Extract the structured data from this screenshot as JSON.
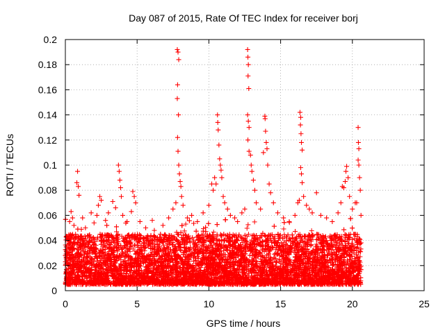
{
  "chart_data": {
    "type": "scatter",
    "title": "Day 087 of 2015, Rate Of TEC Index for receiver borj",
    "xlabel": "GPS time / hours",
    "ylabel": "ROTI / TECUs",
    "xlim": [
      0,
      25
    ],
    "ylim": [
      0,
      0.2
    ],
    "x_ticks": [
      0,
      5,
      10,
      15,
      20,
      25
    ],
    "y_ticks": [
      0,
      0.02,
      0.04,
      0.06,
      0.08,
      0.1,
      0.12,
      0.14,
      0.16,
      0.18,
      0.2
    ],
    "x_tick_labels": [
      "0",
      "5",
      "10",
      "15",
      "20",
      "25"
    ],
    "y_tick_labels": [
      "0",
      "0.02",
      "0.04",
      "0.06",
      "0.08",
      "0.1",
      "0.12",
      "0.14",
      "0.16",
      "0.18",
      "0.2"
    ],
    "grid": true,
    "grid_style": "dotted",
    "marker": "plus",
    "marker_color": "#ff0000",
    "x_data_range": [
      0,
      20.6
    ],
    "baseline_band": [
      0.005,
      0.045
    ],
    "series": [
      {
        "points": [
          [
            0.3,
            0.055
          ],
          [
            0.4,
            0.063
          ],
          [
            0.5,
            0.058
          ],
          [
            0.6,
            0.052
          ],
          [
            0.8,
            0.086
          ],
          [
            0.85,
            0.095
          ],
          [
            0.9,
            0.083
          ],
          [
            0.95,
            0.076
          ],
          [
            1.2,
            0.058
          ],
          [
            1.4,
            0.05
          ],
          [
            1.8,
            0.062
          ],
          [
            2.0,
            0.054
          ],
          [
            2.2,
            0.06
          ],
          [
            2.3,
            0.068
          ],
          [
            2.4,
            0.075
          ],
          [
            2.5,
            0.072
          ],
          [
            2.8,
            0.056
          ],
          [
            3.0,
            0.062
          ],
          [
            3.3,
            0.071
          ],
          [
            3.5,
            0.066
          ],
          [
            3.7,
            0.1
          ],
          [
            3.75,
            0.095
          ],
          [
            3.8,
            0.088
          ],
          [
            3.85,
            0.082
          ],
          [
            3.9,
            0.075
          ],
          [
            4.0,
            0.06
          ],
          [
            4.3,
            0.055
          ],
          [
            4.6,
            0.063
          ],
          [
            4.7,
            0.079
          ],
          [
            4.8,
            0.075
          ],
          [
            4.9,
            0.07
          ],
          [
            5.2,
            0.055
          ],
          [
            5.6,
            0.05
          ],
          [
            6.2,
            0.048
          ],
          [
            6.8,
            0.052
          ],
          [
            7.2,
            0.058
          ],
          [
            7.5,
            0.065
          ],
          [
            7.7,
            0.07
          ],
          [
            7.8,
            0.192
          ],
          [
            7.85,
            0.19
          ],
          [
            7.9,
            0.184
          ],
          [
            7.82,
            0.164
          ],
          [
            7.8,
            0.153
          ],
          [
            7.88,
            0.14
          ],
          [
            7.82,
            0.122
          ],
          [
            7.85,
            0.111
          ],
          [
            7.9,
            0.1
          ],
          [
            7.95,
            0.093
          ],
          [
            8.0,
            0.087
          ],
          [
            8.05,
            0.083
          ],
          [
            8.1,
            0.075
          ],
          [
            8.2,
            0.068
          ],
          [
            8.5,
            0.058
          ],
          [
            8.8,
            0.06
          ],
          [
            9.2,
            0.055
          ],
          [
            9.6,
            0.062
          ],
          [
            10.0,
            0.068
          ],
          [
            10.2,
            0.085
          ],
          [
            10.3,
            0.08
          ],
          [
            10.4,
            0.09
          ],
          [
            10.5,
            0.085
          ],
          [
            10.6,
            0.14
          ],
          [
            10.62,
            0.134
          ],
          [
            10.65,
            0.128
          ],
          [
            10.7,
            0.116
          ],
          [
            10.75,
            0.105
          ],
          [
            10.8,
            0.1
          ],
          [
            10.85,
            0.096
          ],
          [
            10.9,
            0.09
          ],
          [
            11.0,
            0.075
          ],
          [
            11.1,
            0.07
          ],
          [
            11.3,
            0.065
          ],
          [
            11.5,
            0.06
          ],
          [
            11.8,
            0.058
          ],
          [
            12.0,
            0.055
          ],
          [
            12.3,
            0.062
          ],
          [
            12.5,
            0.065
          ],
          [
            12.7,
            0.192
          ],
          [
            12.72,
            0.186
          ],
          [
            12.75,
            0.18
          ],
          [
            12.73,
            0.171
          ],
          [
            12.78,
            0.161
          ],
          [
            12.7,
            0.14
          ],
          [
            12.75,
            0.135
          ],
          [
            12.8,
            0.13
          ],
          [
            12.72,
            0.12
          ],
          [
            12.8,
            0.111
          ],
          [
            12.9,
            0.108
          ],
          [
            12.95,
            0.1
          ],
          [
            13.0,
            0.095
          ],
          [
            13.1,
            0.088
          ],
          [
            13.2,
            0.08
          ],
          [
            13.3,
            0.07
          ],
          [
            13.6,
            0.065
          ],
          [
            13.8,
            0.11
          ],
          [
            13.9,
            0.139
          ],
          [
            13.92,
            0.137
          ],
          [
            13.95,
            0.127
          ],
          [
            14.0,
            0.118
          ],
          [
            14.05,
            0.113
          ],
          [
            14.1,
            0.1
          ],
          [
            14.2,
            0.085
          ],
          [
            14.3,
            0.078
          ],
          [
            14.5,
            0.07
          ],
          [
            14.8,
            0.062
          ],
          [
            15.2,
            0.058
          ],
          [
            15.6,
            0.055
          ],
          [
            16.0,
            0.06
          ],
          [
            16.2,
            0.07
          ],
          [
            16.3,
            0.072
          ],
          [
            16.35,
            0.142
          ],
          [
            16.4,
            0.138
          ],
          [
            16.38,
            0.132
          ],
          [
            16.42,
            0.125
          ],
          [
            16.45,
            0.118
          ],
          [
            16.5,
            0.112
          ],
          [
            16.4,
            0.098
          ],
          [
            16.45,
            0.093
          ],
          [
            16.5,
            0.086
          ],
          [
            16.6,
            0.075
          ],
          [
            16.8,
            0.068
          ],
          [
            17.0,
            0.065
          ],
          [
            17.2,
            0.062
          ],
          [
            17.5,
            0.078
          ],
          [
            17.8,
            0.06
          ],
          [
            18.2,
            0.058
          ],
          [
            18.6,
            0.055
          ],
          [
            19.0,
            0.062
          ],
          [
            19.2,
            0.07
          ],
          [
            19.3,
            0.083
          ],
          [
            19.4,
            0.082
          ],
          [
            19.5,
            0.087
          ],
          [
            19.55,
            0.095
          ],
          [
            19.6,
            0.099
          ],
          [
            19.7,
            0.09
          ],
          [
            19.8,
            0.075
          ],
          [
            20.0,
            0.065
          ],
          [
            20.2,
            0.07
          ],
          [
            20.3,
            0.07
          ],
          [
            20.4,
            0.13
          ],
          [
            20.42,
            0.118
          ],
          [
            20.45,
            0.113
          ],
          [
            20.4,
            0.104
          ],
          [
            20.45,
            0.1
          ],
          [
            20.5,
            0.09
          ],
          [
            20.55,
            0.08
          ],
          [
            20.6,
            0.06
          ]
        ]
      }
    ]
  }
}
